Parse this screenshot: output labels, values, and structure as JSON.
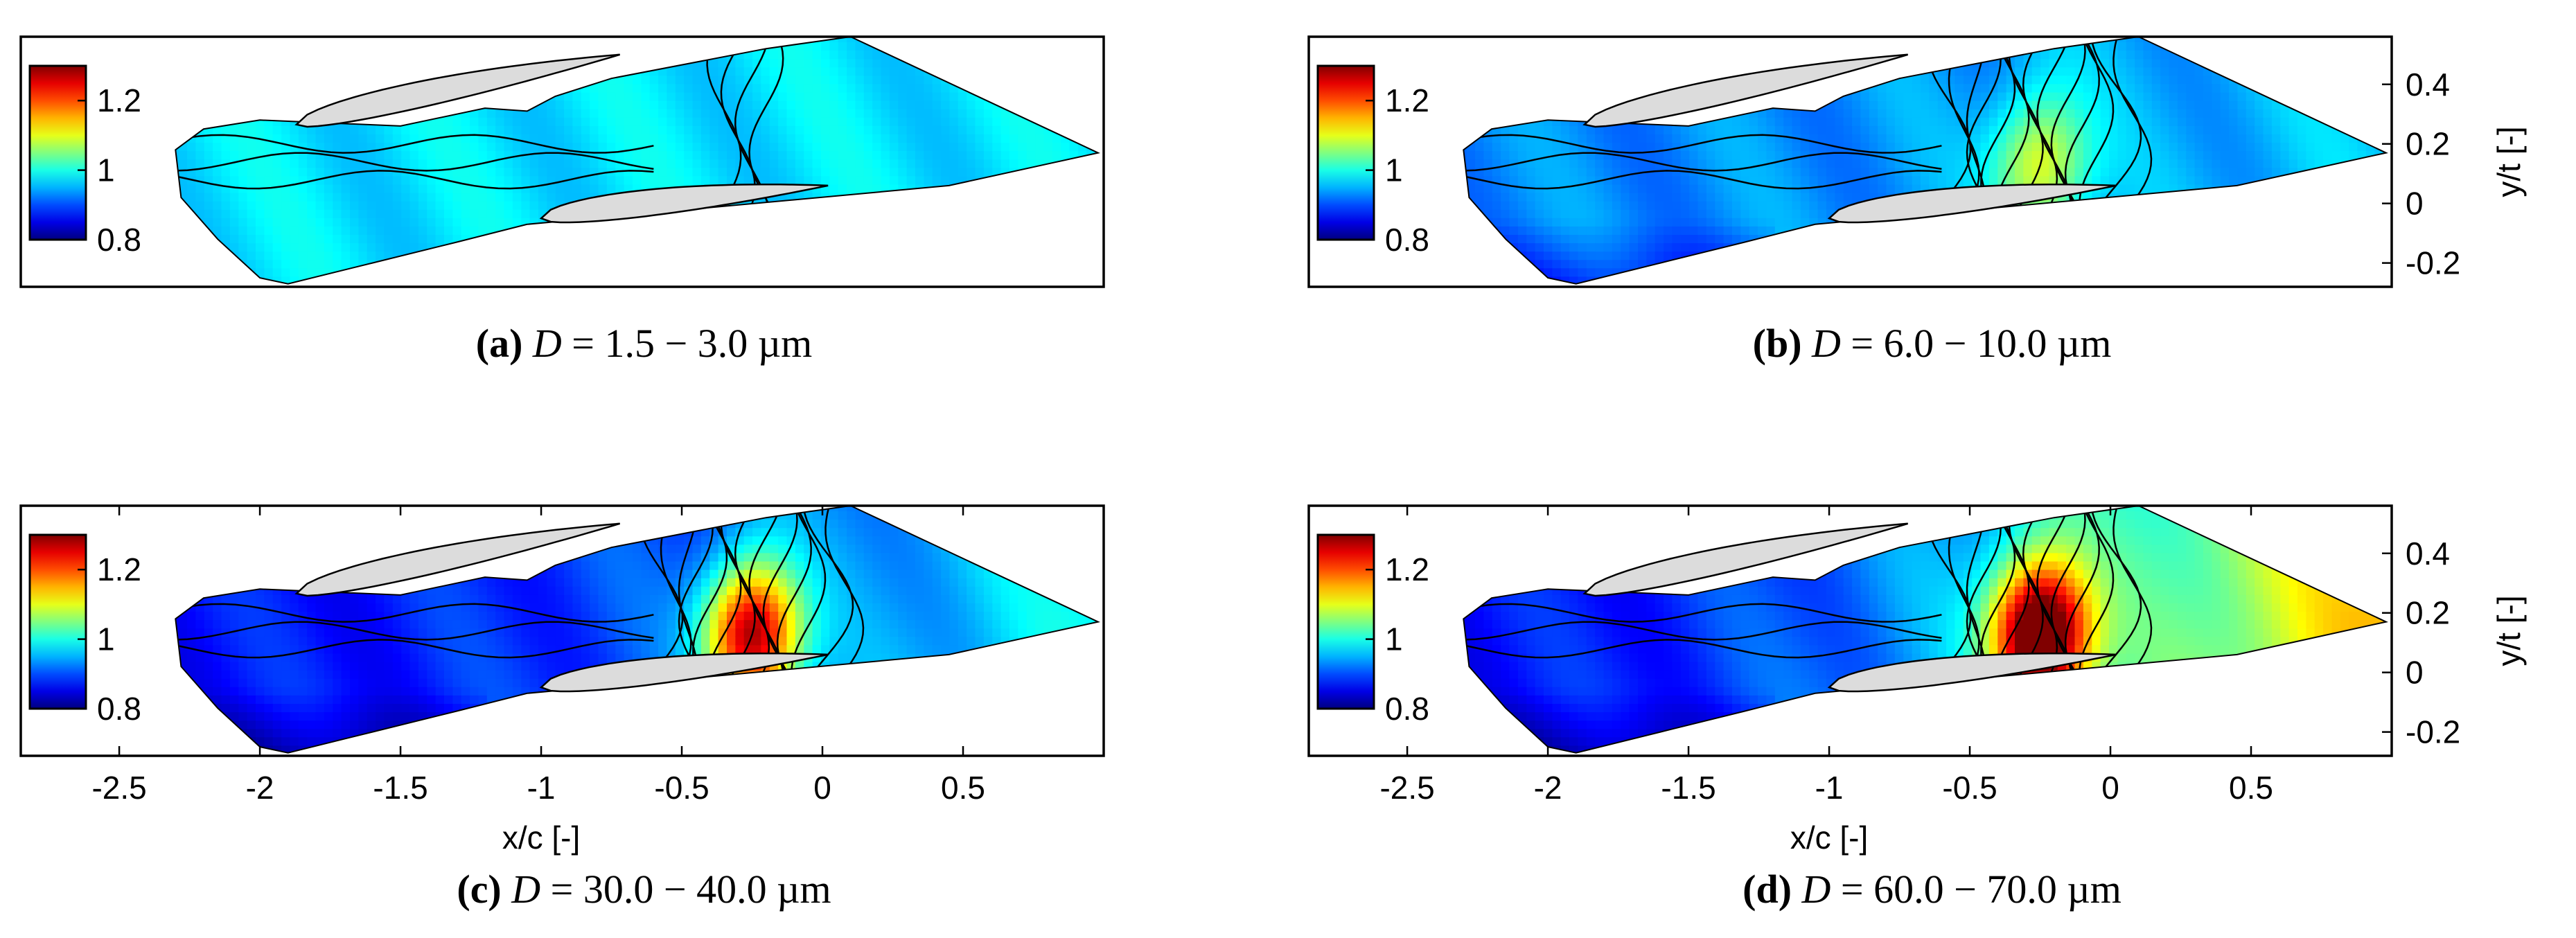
{
  "colorbar": {
    "min": 0.8,
    "max": 1.3,
    "ticks": [
      "1.2",
      "1",
      "0.8"
    ],
    "tick_values": [
      1.2,
      1.0,
      0.8
    ],
    "colormap": "jet"
  },
  "colors": {
    "airfoil_fill": "#dcdcdc",
    "contour_line": "#000000",
    "frame": "#000000"
  },
  "panels": [
    {
      "id": "a",
      "label": "(a)",
      "var": "D",
      "eq": "=",
      "range": "1.5 − 3.0 µm",
      "show_xaxis": false,
      "show_yaxis": false,
      "field": {
        "base": 0.975,
        "peak": 0.0,
        "peak_x": -0.25,
        "bias": 0.0,
        "lower_dark": false
      }
    },
    {
      "id": "b",
      "label": "(b)",
      "var": "D",
      "eq": "=",
      "range": "6.0 − 10.0 µm",
      "show_xaxis": false,
      "show_yaxis": true,
      "field": {
        "base": 0.93,
        "peak": 0.17,
        "peak_x": -0.25,
        "bias": 0.03,
        "lower_dark": true
      }
    },
    {
      "id": "c",
      "label": "(c)",
      "var": "D",
      "eq": "=",
      "range": "30.0 − 40.0 µm",
      "show_xaxis": true,
      "show_yaxis": false,
      "field": {
        "base": 0.87,
        "peak": 0.38,
        "peak_x": -0.25,
        "bias": 0.12,
        "lower_dark": true
      }
    },
    {
      "id": "d",
      "label": "(d)",
      "var": "D",
      "eq": "=",
      "range": "60.0 − 70.0 µm",
      "show_xaxis": true,
      "show_yaxis": true,
      "field": {
        "base": 0.87,
        "peak": 0.43,
        "peak_x": -0.25,
        "bias": 0.28,
        "lower_dark": true
      }
    }
  ],
  "chart_data": {
    "type": "heatmap",
    "title": "",
    "xlabel": "x/c [-]",
    "ylabel": "y/t [-]",
    "xlim": [
      -2.85,
      1.0
    ],
    "ylim": [
      -0.28,
      0.56
    ],
    "xticks": [
      "-2.5",
      "-2",
      "-1.5",
      "-1",
      "-0.5",
      "0",
      "0.5"
    ],
    "xtick_values": [
      -2.5,
      -2.0,
      -1.5,
      -1.0,
      -0.5,
      0.0,
      0.5
    ],
    "yticks": [
      "0.4",
      "0.2",
      "0",
      "-0.2"
    ],
    "ytick_values": [
      0.4,
      0.2,
      0.0,
      -0.2
    ],
    "color_range": [
      0.8,
      1.3
    ],
    "series": [
      {
        "name": "D = 1.5 − 3.0 µm",
        "approx_value_range": [
          0.95,
          1.0
        ],
        "peak_location_x": -0.25,
        "peak_value": 1.0
      },
      {
        "name": "D = 6.0 − 10.0 µm",
        "approx_value_range": [
          0.9,
          1.1
        ],
        "peak_location_x": -0.25,
        "peak_value": 1.1
      },
      {
        "name": "D = 30.0 − 40.0 µm",
        "approx_value_range": [
          0.85,
          1.25
        ],
        "peak_location_x": -0.25,
        "peak_value": 1.25
      },
      {
        "name": "D = 60.0 − 70.0 µm",
        "approx_value_range": [
          0.85,
          1.3
        ],
        "peak_location_x": -0.25,
        "peak_value": 1.3
      }
    ]
  }
}
